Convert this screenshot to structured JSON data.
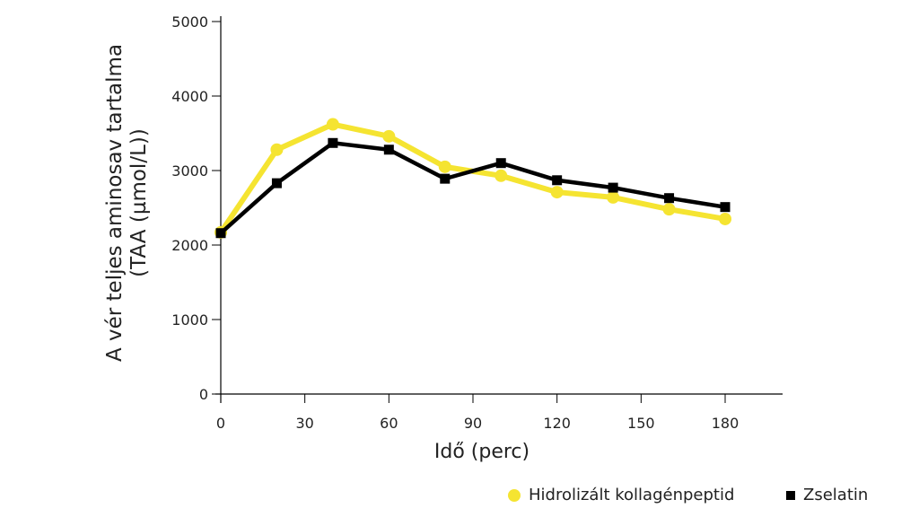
{
  "chart_data": {
    "type": "line",
    "title": "",
    "xlabel": "Idő (perc)",
    "ylabel_line1": "A vér teljes aminosav tartalma",
    "ylabel_line2": "(TAA (µmol/L))",
    "x": [
      0,
      20,
      40,
      60,
      80,
      100,
      120,
      140,
      160,
      180
    ],
    "xticks": [
      "0",
      "30",
      "60",
      "90",
      "120",
      "150",
      "180"
    ],
    "yticks": [
      "0",
      "1000",
      "2000",
      "3000",
      "4000",
      "5000"
    ],
    "xlim": [
      0,
      200
    ],
    "ylim": [
      0,
      5000
    ],
    "grid": false,
    "legend_position": "bottom-right",
    "series": [
      {
        "name": "Hidrolizált kollagénpeptid",
        "color": "#F5E431",
        "marker": "circle",
        "values": [
          2170,
          3280,
          3620,
          3460,
          3050,
          2930,
          2710,
          2640,
          2480,
          2350
        ]
      },
      {
        "name": "Zselatin",
        "color": "#000000",
        "marker": "square",
        "values": [
          2160,
          2830,
          3370,
          3280,
          2890,
          3100,
          2870,
          2770,
          2630,
          2510
        ]
      }
    ]
  },
  "legend": {
    "item1": "Hidrolizált kollagénpeptid",
    "item2": "Zselatin"
  }
}
